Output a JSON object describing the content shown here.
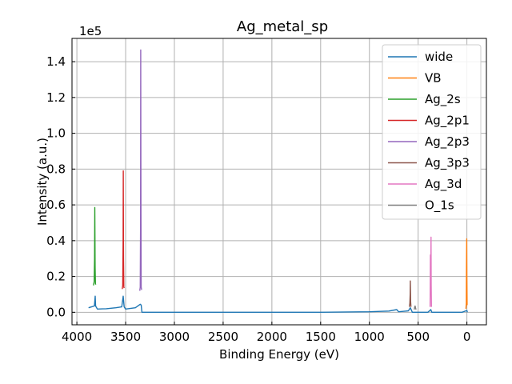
{
  "chart_data": {
    "type": "line",
    "title": "Ag_metal_sp",
    "xlabel": "Binding Energy (eV)",
    "ylabel": "Intensity (a.u.)",
    "y_offset_text": "1e5",
    "xlim": [
      4050,
      -200
    ],
    "ylim": [
      -7000,
      153000
    ],
    "x_ticks": [
      4000,
      3500,
      3000,
      2500,
      2000,
      1500,
      1000,
      500,
      0
    ],
    "x_tick_labels": [
      "4000",
      "3500",
      "3000",
      "2500",
      "2000",
      "1500",
      "1000",
      "500",
      "0"
    ],
    "y_ticks": [
      0,
      20000,
      40000,
      60000,
      80000,
      100000,
      120000,
      140000
    ],
    "y_tick_labels": [
      "0.0",
      "0.2",
      "0.4",
      "0.6",
      "0.8",
      "1.0",
      "1.2",
      "1.4"
    ],
    "grid": true,
    "legend_position": "top-right",
    "series": [
      {
        "name": "wide",
        "color": "#1f77b4",
        "points": [
          [
            3880,
            2500
          ],
          [
            3850,
            3000
          ],
          [
            3820,
            3500
          ],
          [
            3812,
            9000
          ],
          [
            3808,
            3500
          ],
          [
            3790,
            1800
          ],
          [
            3700,
            2000
          ],
          [
            3600,
            2500
          ],
          [
            3540,
            3000
          ],
          [
            3525,
            9000
          ],
          [
            3515,
            3000
          ],
          [
            3500,
            1800
          ],
          [
            3400,
            2500
          ],
          [
            3350,
            4500
          ],
          [
            3340,
            4000
          ],
          [
            3333,
            0
          ],
          [
            3300,
            0
          ],
          [
            3000,
            0
          ],
          [
            2500,
            0
          ],
          [
            2000,
            0
          ],
          [
            1500,
            0
          ],
          [
            1000,
            300
          ],
          [
            800,
            700
          ],
          [
            720,
            1500
          ],
          [
            700,
            300
          ],
          [
            600,
            800
          ],
          [
            580,
            2500
          ],
          [
            560,
            0
          ],
          [
            400,
            0
          ],
          [
            370,
            1500
          ],
          [
            360,
            0
          ],
          [
            200,
            0
          ],
          [
            50,
            0
          ],
          [
            0,
            1000
          ],
          [
            -5,
            0
          ]
        ]
      },
      {
        "name": "VB",
        "color": "#ff7f0e",
        "points": [
          [
            10,
            2000
          ],
          [
            6,
            5000
          ],
          [
            4,
            25000
          ],
          [
            2,
            41000
          ],
          [
            0,
            20000
          ],
          [
            -2,
            4000
          ]
        ]
      },
      {
        "name": "Ag_2s",
        "color": "#2ca02c",
        "points": [
          [
            3830,
            15000
          ],
          [
            3823,
            17000
          ],
          [
            3819,
            30000
          ],
          [
            3816,
            58500
          ],
          [
            3813,
            25000
          ],
          [
            3810,
            16000
          ],
          [
            3806,
            15500
          ]
        ]
      },
      {
        "name": "Ag_2p1",
        "color": "#d62728",
        "points": [
          [
            3535,
            13000
          ],
          [
            3530,
            15000
          ],
          [
            3526,
            40000
          ],
          [
            3524,
            79000
          ],
          [
            3522,
            30000
          ],
          [
            3518,
            14000
          ],
          [
            3514,
            13500
          ]
        ]
      },
      {
        "name": "Ag_2p3",
        "color": "#9467bd",
        "points": [
          [
            3355,
            12000
          ],
          [
            3350,
            14000
          ],
          [
            3347,
            50000
          ],
          [
            3345,
            146500
          ],
          [
            3343,
            60000
          ],
          [
            3340,
            14000
          ],
          [
            3336,
            12500
          ]
        ]
      },
      {
        "name": "Ag_3p3",
        "color": "#8c564b",
        "points": [
          [
            590,
            3000
          ],
          [
            585,
            5000
          ],
          [
            582,
            10000
          ],
          [
            580,
            17500
          ],
          [
            577,
            6000
          ],
          [
            574,
            3000
          ]
        ]
      },
      {
        "name": "Ag_3d",
        "color": "#e377c2",
        "points": [
          [
            378,
            3000
          ],
          [
            376,
            15000
          ],
          [
            374,
            32000
          ],
          [
            372,
            15000
          ],
          [
            370,
            25000
          ],
          [
            368,
            42000
          ],
          [
            366,
            15000
          ],
          [
            364,
            3000
          ]
        ]
      },
      {
        "name": "O_1s",
        "color": "#7f7f7f",
        "points": [
          [
            540,
            1500
          ],
          [
            535,
            3000
          ],
          [
            531,
            3500
          ],
          [
            527,
            2500
          ],
          [
            522,
            1500
          ]
        ]
      }
    ]
  }
}
